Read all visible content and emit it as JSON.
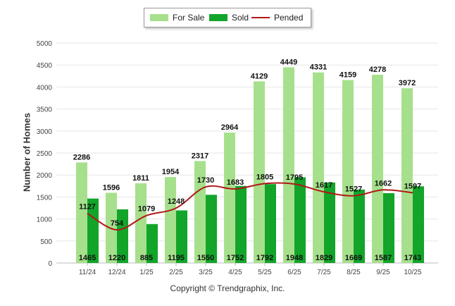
{
  "chart_data": {
    "type": "bar",
    "title": "",
    "ylabel": "Number of Homes",
    "xlabel": "",
    "ylim": [
      0,
      5000
    ],
    "yticks": [
      0,
      500,
      1000,
      1500,
      2000,
      2500,
      3000,
      3500,
      4000,
      4500,
      5000
    ],
    "categories": [
      "11/24",
      "12/24",
      "1/25",
      "2/25",
      "3/25",
      "4/25",
      "5/25",
      "6/25",
      "7/25",
      "8/25",
      "9/25",
      "10/25"
    ],
    "series": [
      {
        "name": "For Sale",
        "kind": "bar",
        "color": "#a6e08c",
        "values": [
          2286,
          1596,
          1811,
          1954,
          2317,
          2964,
          4129,
          4449,
          4331,
          4159,
          4278,
          3972
        ]
      },
      {
        "name": "Sold",
        "kind": "bar",
        "color": "#12a52a",
        "values": [
          1465,
          1220,
          885,
          1195,
          1550,
          1752,
          1792,
          1948,
          1829,
          1669,
          1587,
          1743
        ]
      },
      {
        "name": "Pended",
        "kind": "line",
        "color": "#b01818",
        "values": [
          1127,
          754,
          1079,
          1248,
          1730,
          1683,
          1805,
          1795,
          1617,
          1527,
          1662,
          1597
        ]
      }
    ],
    "legend_position": "top-center",
    "grid": true
  },
  "footer": {
    "copyright": "Copyright © Trendgraphix, Inc."
  }
}
